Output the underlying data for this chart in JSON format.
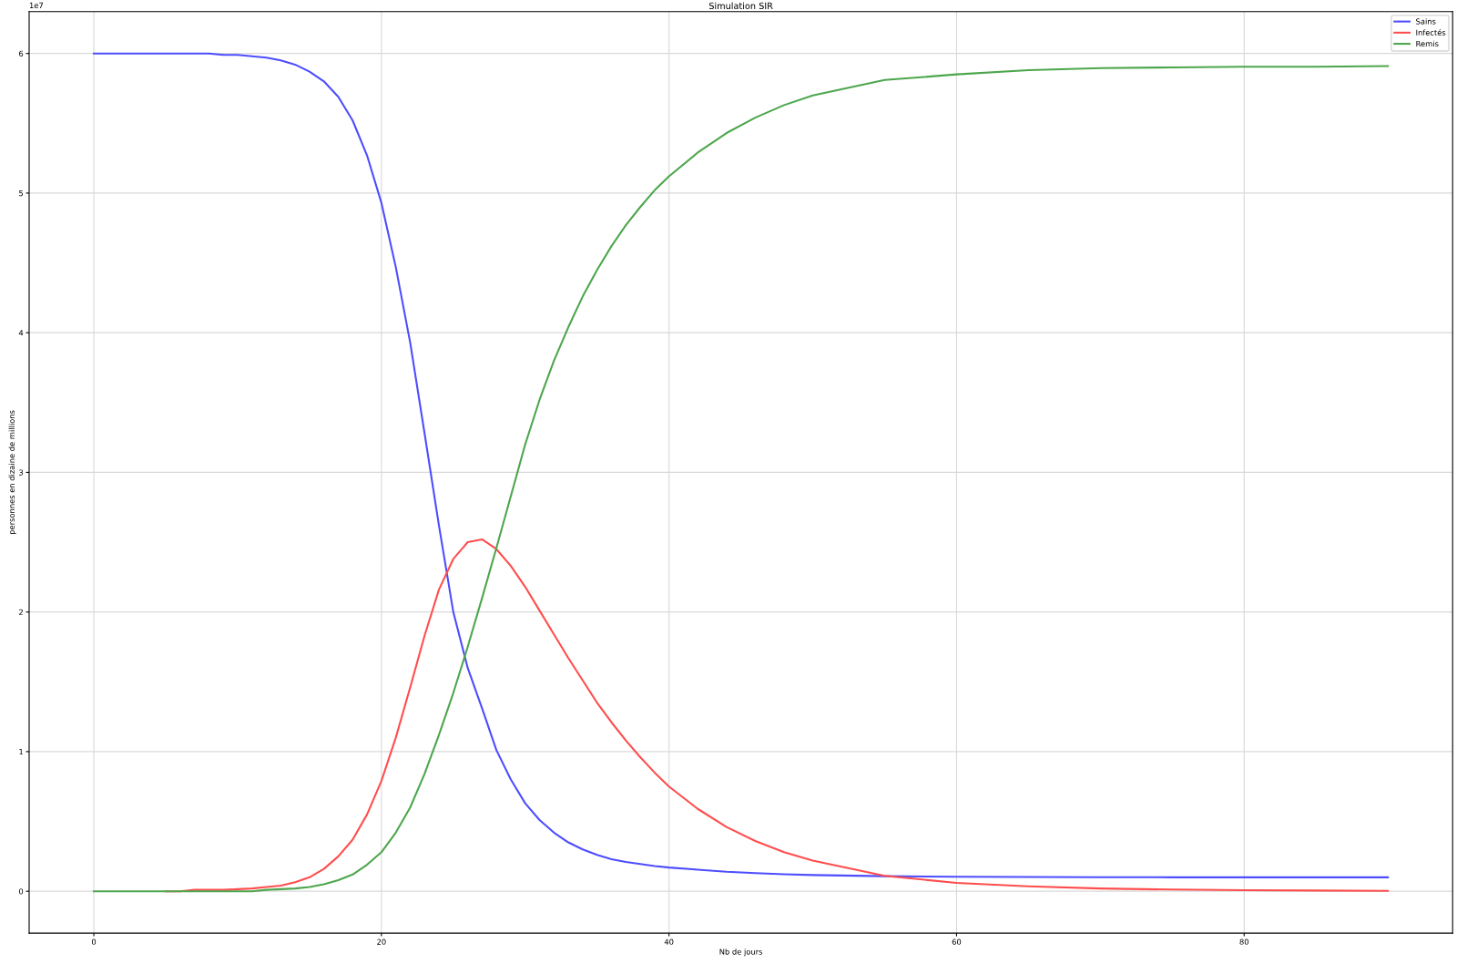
{
  "chart_data": {
    "type": "line",
    "title": "Simulation SIR",
    "xlabel": "Nb de jours",
    "ylabel": "personnes en dizaine de millions",
    "annotations": [
      "1e7"
    ],
    "x": [
      0,
      1,
      2,
      3,
      4,
      5,
      6,
      7,
      8,
      9,
      10,
      11,
      12,
      13,
      14,
      15,
      16,
      17,
      18,
      19,
      20,
      21,
      22,
      23,
      24,
      25,
      26,
      27,
      28,
      29,
      30,
      31,
      32,
      33,
      34,
      35,
      36,
      37,
      38,
      39,
      40,
      42,
      44,
      46,
      48,
      50,
      55,
      60,
      65,
      70,
      75,
      80,
      85,
      90
    ],
    "series": [
      {
        "name": "Sains",
        "color": "#4d4dff",
        "values": [
          6.0,
          6.0,
          6.0,
          6.0,
          6.0,
          6.0,
          6.0,
          6.0,
          6.0,
          5.99,
          5.99,
          5.98,
          5.97,
          5.95,
          5.92,
          5.87,
          5.8,
          5.69,
          5.52,
          5.27,
          4.93,
          4.47,
          3.93,
          3.28,
          2.62,
          2.0,
          1.6,
          1.31,
          1.01,
          0.8,
          0.63,
          0.51,
          0.42,
          0.35,
          0.3,
          0.26,
          0.23,
          0.21,
          0.195,
          0.18,
          0.17,
          0.155,
          0.14,
          0.13,
          0.122,
          0.116,
          0.108,
          0.104,
          0.102,
          0.101,
          0.1,
          0.1,
          0.1,
          0.1
        ]
      },
      {
        "name": "Infectés",
        "color": "#ff4d4d",
        "values": [
          null,
          null,
          null,
          null,
          null,
          0.0,
          0.0,
          0.01,
          0.01,
          0.01,
          0.015,
          0.02,
          0.03,
          0.04,
          0.065,
          0.1,
          0.16,
          0.25,
          0.37,
          0.55,
          0.79,
          1.1,
          1.46,
          1.83,
          2.16,
          2.38,
          2.5,
          2.52,
          2.45,
          2.33,
          2.18,
          2.01,
          1.84,
          1.67,
          1.51,
          1.35,
          1.21,
          1.08,
          0.96,
          0.85,
          0.75,
          0.59,
          0.46,
          0.36,
          0.28,
          0.22,
          0.11,
          0.06,
          0.035,
          0.02,
          0.012,
          0.008,
          0.005,
          0.003
        ]
      },
      {
        "name": "Remis",
        "color": "#4da64d",
        "values": [
          0.0,
          0.0,
          0.0,
          0.0,
          0.0,
          0.0,
          0.0,
          0.0,
          0.0,
          0.0,
          0.0,
          0.0,
          0.01,
          0.015,
          0.02,
          0.03,
          0.05,
          0.08,
          0.12,
          0.19,
          0.28,
          0.42,
          0.6,
          0.84,
          1.12,
          1.42,
          1.75,
          2.1,
          2.46,
          2.83,
          3.2,
          3.52,
          3.8,
          4.04,
          4.26,
          4.45,
          4.62,
          4.77,
          4.9,
          5.02,
          5.12,
          5.29,
          5.43,
          5.54,
          5.63,
          5.7,
          5.81,
          5.85,
          5.88,
          5.895,
          5.9,
          5.905,
          5.905,
          5.91
        ]
      }
    ],
    "xlim": [
      -4.5,
      94.5
    ],
    "xticks": [
      0,
      20,
      40,
      60,
      80
    ],
    "ylim": [
      -0.3,
      6.3
    ],
    "yticks": [
      0,
      1,
      2,
      3,
      4,
      5,
      6
    ],
    "grid": true,
    "legend": "top right",
    "line_style": "solid",
    "marker": "none"
  }
}
